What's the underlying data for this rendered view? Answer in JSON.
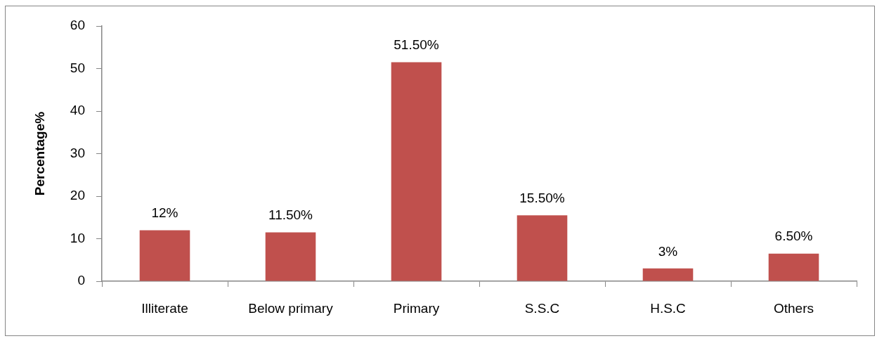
{
  "chart_data": {
    "type": "bar",
    "ylabel": "Percentage%",
    "categories": [
      "Illiterate",
      "Below primary",
      "Primary",
      "S.S.C",
      "H.S.C",
      "Others"
    ],
    "values": [
      12,
      11.5,
      51.5,
      15.5,
      3,
      6.5
    ],
    "value_labels": [
      "12%",
      "11.50%",
      "51.50%",
      "15.50%",
      "3%",
      "6.50%"
    ],
    "color": "#c0504d",
    "ylim": [
      0,
      60
    ],
    "yticks": [
      0,
      10,
      20,
      30,
      40,
      50,
      60
    ]
  }
}
